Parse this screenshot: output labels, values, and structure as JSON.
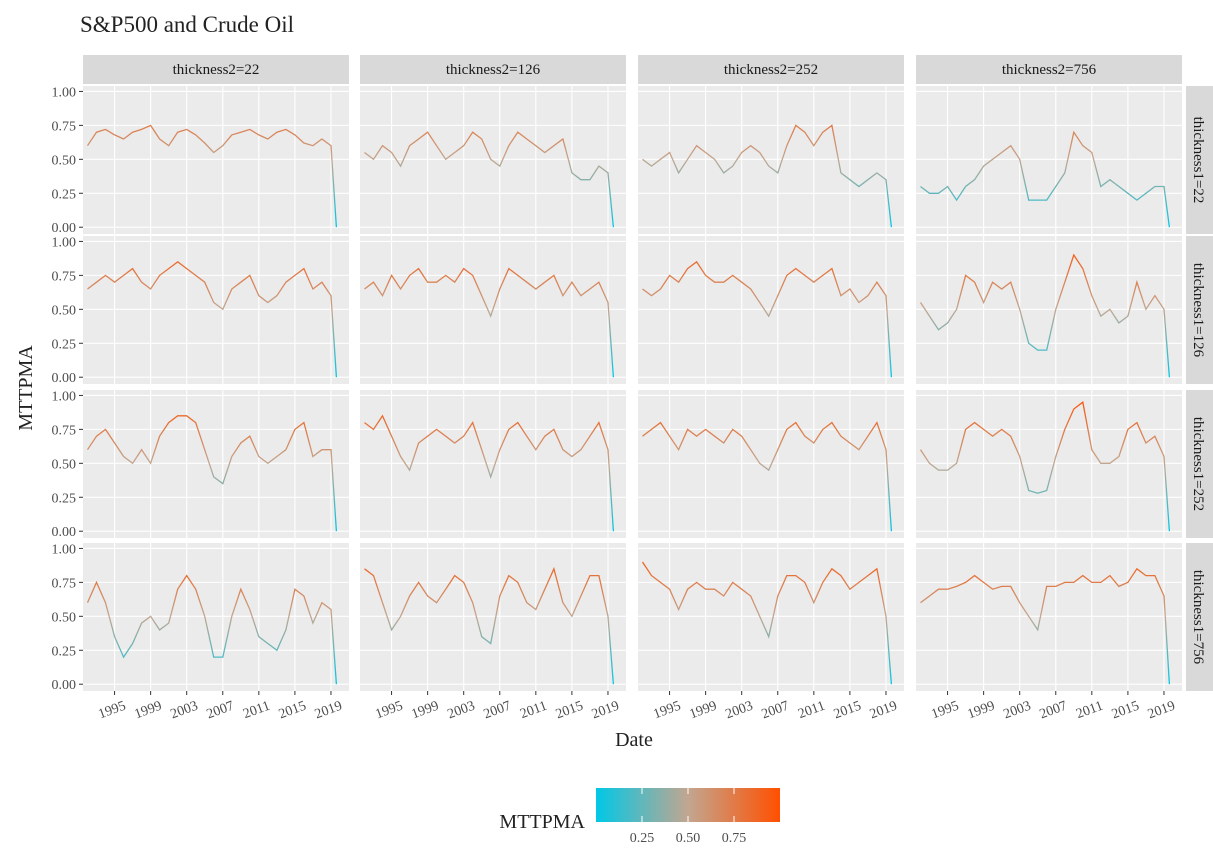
{
  "chart_data": {
    "type": "facet-line",
    "title": "S&P500 and Crude Oil",
    "xlabel": "Date",
    "ylabel": "MTTPMA",
    "columns": [
      "thickness2=22",
      "thickness2=126",
      "thickness2=252",
      "thickness2=756"
    ],
    "rows": [
      "thickness1=22",
      "thickness1=126",
      "thickness1=252",
      "thickness1=756"
    ],
    "x": [
      1992,
      1993,
      1994,
      1995,
      1996,
      1997,
      1998,
      1999,
      2000,
      2001,
      2002,
      2003,
      2004,
      2005,
      2006,
      2007,
      2008,
      2009,
      2010,
      2011,
      2012,
      2013,
      2014,
      2015,
      2016,
      2017,
      2018,
      2019,
      2019.6
    ],
    "xlim": [
      1991.5,
      2021
    ],
    "xticks": [
      1995,
      1999,
      2003,
      2007,
      2011,
      2015,
      2019
    ],
    "ylim": [
      -0.05,
      1.04
    ],
    "yticks": [
      {
        "value": 0,
        "label": "0.00"
      },
      {
        "value": 0.25,
        "label": "0.25"
      },
      {
        "value": 0.5,
        "label": "0.50"
      },
      {
        "value": 0.75,
        "label": "0.75"
      },
      {
        "value": 1,
        "label": "1.00"
      }
    ],
    "grid": true,
    "legend_title": "MTTPMA",
    "colorlim": [
      0,
      1
    ],
    "colors": [
      "#00c8e6",
      "#c2a690",
      "#ff5000"
    ],
    "colorticks": [
      {
        "value": 0.25,
        "label": "0.25"
      },
      {
        "value": 0.5,
        "label": "0.50"
      },
      {
        "value": 0.75,
        "label": "0.75"
      }
    ],
    "panels": [
      {
        "values": [
          0.6,
          0.7,
          0.72,
          0.68,
          0.65,
          0.7,
          0.72,
          0.75,
          0.65,
          0.6,
          0.7,
          0.72,
          0.68,
          0.62,
          0.55,
          0.6,
          0.68,
          0.7,
          0.72,
          0.68,
          0.65,
          0.7,
          0.72,
          0.68,
          0.62,
          0.6,
          0.65,
          0.6,
          0.0
        ]
      },
      {
        "values": [
          0.55,
          0.5,
          0.6,
          0.55,
          0.45,
          0.6,
          0.65,
          0.7,
          0.6,
          0.5,
          0.55,
          0.6,
          0.7,
          0.65,
          0.5,
          0.45,
          0.6,
          0.7,
          0.65,
          0.6,
          0.55,
          0.6,
          0.65,
          0.4,
          0.35,
          0.35,
          0.45,
          0.4,
          0.0
        ]
      },
      {
        "values": [
          0.5,
          0.45,
          0.5,
          0.55,
          0.4,
          0.5,
          0.6,
          0.55,
          0.5,
          0.4,
          0.45,
          0.55,
          0.6,
          0.55,
          0.45,
          0.4,
          0.6,
          0.75,
          0.7,
          0.6,
          0.7,
          0.75,
          0.4,
          0.35,
          0.3,
          0.35,
          0.4,
          0.35,
          0.0
        ]
      },
      {
        "values": [
          0.3,
          0.25,
          0.25,
          0.3,
          0.2,
          0.3,
          0.35,
          0.45,
          0.5,
          0.55,
          0.6,
          0.5,
          0.2,
          0.2,
          0.2,
          0.3,
          0.4,
          0.7,
          0.6,
          0.55,
          0.3,
          0.35,
          0.3,
          0.25,
          0.2,
          0.25,
          0.3,
          0.3,
          0.0
        ]
      },
      {
        "values": [
          0.65,
          0.7,
          0.75,
          0.7,
          0.75,
          0.8,
          0.7,
          0.65,
          0.75,
          0.8,
          0.85,
          0.8,
          0.75,
          0.7,
          0.55,
          0.5,
          0.65,
          0.7,
          0.75,
          0.6,
          0.55,
          0.6,
          0.7,
          0.75,
          0.8,
          0.65,
          0.7,
          0.6,
          0.0
        ]
      },
      {
        "values": [
          0.65,
          0.7,
          0.6,
          0.75,
          0.65,
          0.75,
          0.8,
          0.7,
          0.7,
          0.75,
          0.7,
          0.8,
          0.75,
          0.6,
          0.45,
          0.65,
          0.8,
          0.75,
          0.7,
          0.65,
          0.7,
          0.75,
          0.6,
          0.7,
          0.6,
          0.65,
          0.7,
          0.55,
          0.0
        ]
      },
      {
        "values": [
          0.65,
          0.6,
          0.65,
          0.75,
          0.7,
          0.8,
          0.85,
          0.75,
          0.7,
          0.7,
          0.75,
          0.7,
          0.65,
          0.55,
          0.45,
          0.6,
          0.75,
          0.8,
          0.75,
          0.7,
          0.75,
          0.8,
          0.6,
          0.65,
          0.55,
          0.6,
          0.7,
          0.6,
          0.0
        ]
      },
      {
        "values": [
          0.55,
          0.45,
          0.35,
          0.4,
          0.5,
          0.75,
          0.7,
          0.55,
          0.7,
          0.65,
          0.7,
          0.5,
          0.25,
          0.2,
          0.2,
          0.5,
          0.7,
          0.9,
          0.8,
          0.6,
          0.45,
          0.5,
          0.4,
          0.45,
          0.7,
          0.5,
          0.6,
          0.5,
          0.0
        ]
      },
      {
        "values": [
          0.6,
          0.7,
          0.75,
          0.65,
          0.55,
          0.5,
          0.6,
          0.5,
          0.7,
          0.8,
          0.85,
          0.85,
          0.8,
          0.6,
          0.4,
          0.35,
          0.55,
          0.65,
          0.7,
          0.55,
          0.5,
          0.55,
          0.6,
          0.75,
          0.8,
          0.55,
          0.6,
          0.6,
          0.0
        ]
      },
      {
        "values": [
          0.8,
          0.75,
          0.85,
          0.7,
          0.55,
          0.45,
          0.65,
          0.7,
          0.75,
          0.7,
          0.65,
          0.7,
          0.8,
          0.6,
          0.4,
          0.6,
          0.75,
          0.8,
          0.7,
          0.6,
          0.7,
          0.75,
          0.6,
          0.55,
          0.6,
          0.7,
          0.8,
          0.6,
          0.0
        ]
      },
      {
        "values": [
          0.7,
          0.75,
          0.8,
          0.7,
          0.6,
          0.75,
          0.7,
          0.75,
          0.7,
          0.65,
          0.75,
          0.7,
          0.6,
          0.5,
          0.45,
          0.6,
          0.75,
          0.8,
          0.7,
          0.65,
          0.75,
          0.8,
          0.7,
          0.65,
          0.6,
          0.7,
          0.8,
          0.6,
          0.0
        ]
      },
      {
        "values": [
          0.6,
          0.5,
          0.45,
          0.45,
          0.5,
          0.75,
          0.8,
          0.75,
          0.7,
          0.75,
          0.7,
          0.55,
          0.3,
          0.28,
          0.3,
          0.55,
          0.75,
          0.9,
          0.95,
          0.6,
          0.5,
          0.5,
          0.55,
          0.75,
          0.8,
          0.65,
          0.7,
          0.55,
          0.0
        ]
      },
      {
        "values": [
          0.6,
          0.75,
          0.6,
          0.35,
          0.2,
          0.3,
          0.45,
          0.5,
          0.4,
          0.45,
          0.7,
          0.8,
          0.7,
          0.5,
          0.2,
          0.2,
          0.5,
          0.7,
          0.55,
          0.35,
          0.3,
          0.25,
          0.4,
          0.7,
          0.65,
          0.45,
          0.6,
          0.55,
          0.0
        ]
      },
      {
        "values": [
          0.85,
          0.8,
          0.6,
          0.4,
          0.5,
          0.65,
          0.75,
          0.65,
          0.6,
          0.7,
          0.8,
          0.75,
          0.6,
          0.35,
          0.3,
          0.65,
          0.8,
          0.75,
          0.6,
          0.55,
          0.7,
          0.85,
          0.6,
          0.5,
          0.65,
          0.8,
          0.8,
          0.5,
          0.0
        ]
      },
      {
        "values": [
          0.9,
          0.8,
          0.75,
          0.7,
          0.55,
          0.7,
          0.75,
          0.7,
          0.7,
          0.65,
          0.75,
          0.7,
          0.65,
          0.5,
          0.35,
          0.65,
          0.8,
          0.8,
          0.75,
          0.6,
          0.75,
          0.85,
          0.8,
          0.7,
          0.75,
          0.8,
          0.85,
          0.5,
          0.0
        ]
      },
      {
        "values": [
          0.6,
          0.65,
          0.7,
          0.7,
          0.72,
          0.75,
          0.8,
          0.75,
          0.7,
          0.72,
          0.72,
          0.6,
          0.5,
          0.4,
          0.72,
          0.72,
          0.75,
          0.75,
          0.8,
          0.75,
          0.75,
          0.8,
          0.72,
          0.75,
          0.85,
          0.8,
          0.8,
          0.65,
          0.0
        ]
      }
    ]
  }
}
